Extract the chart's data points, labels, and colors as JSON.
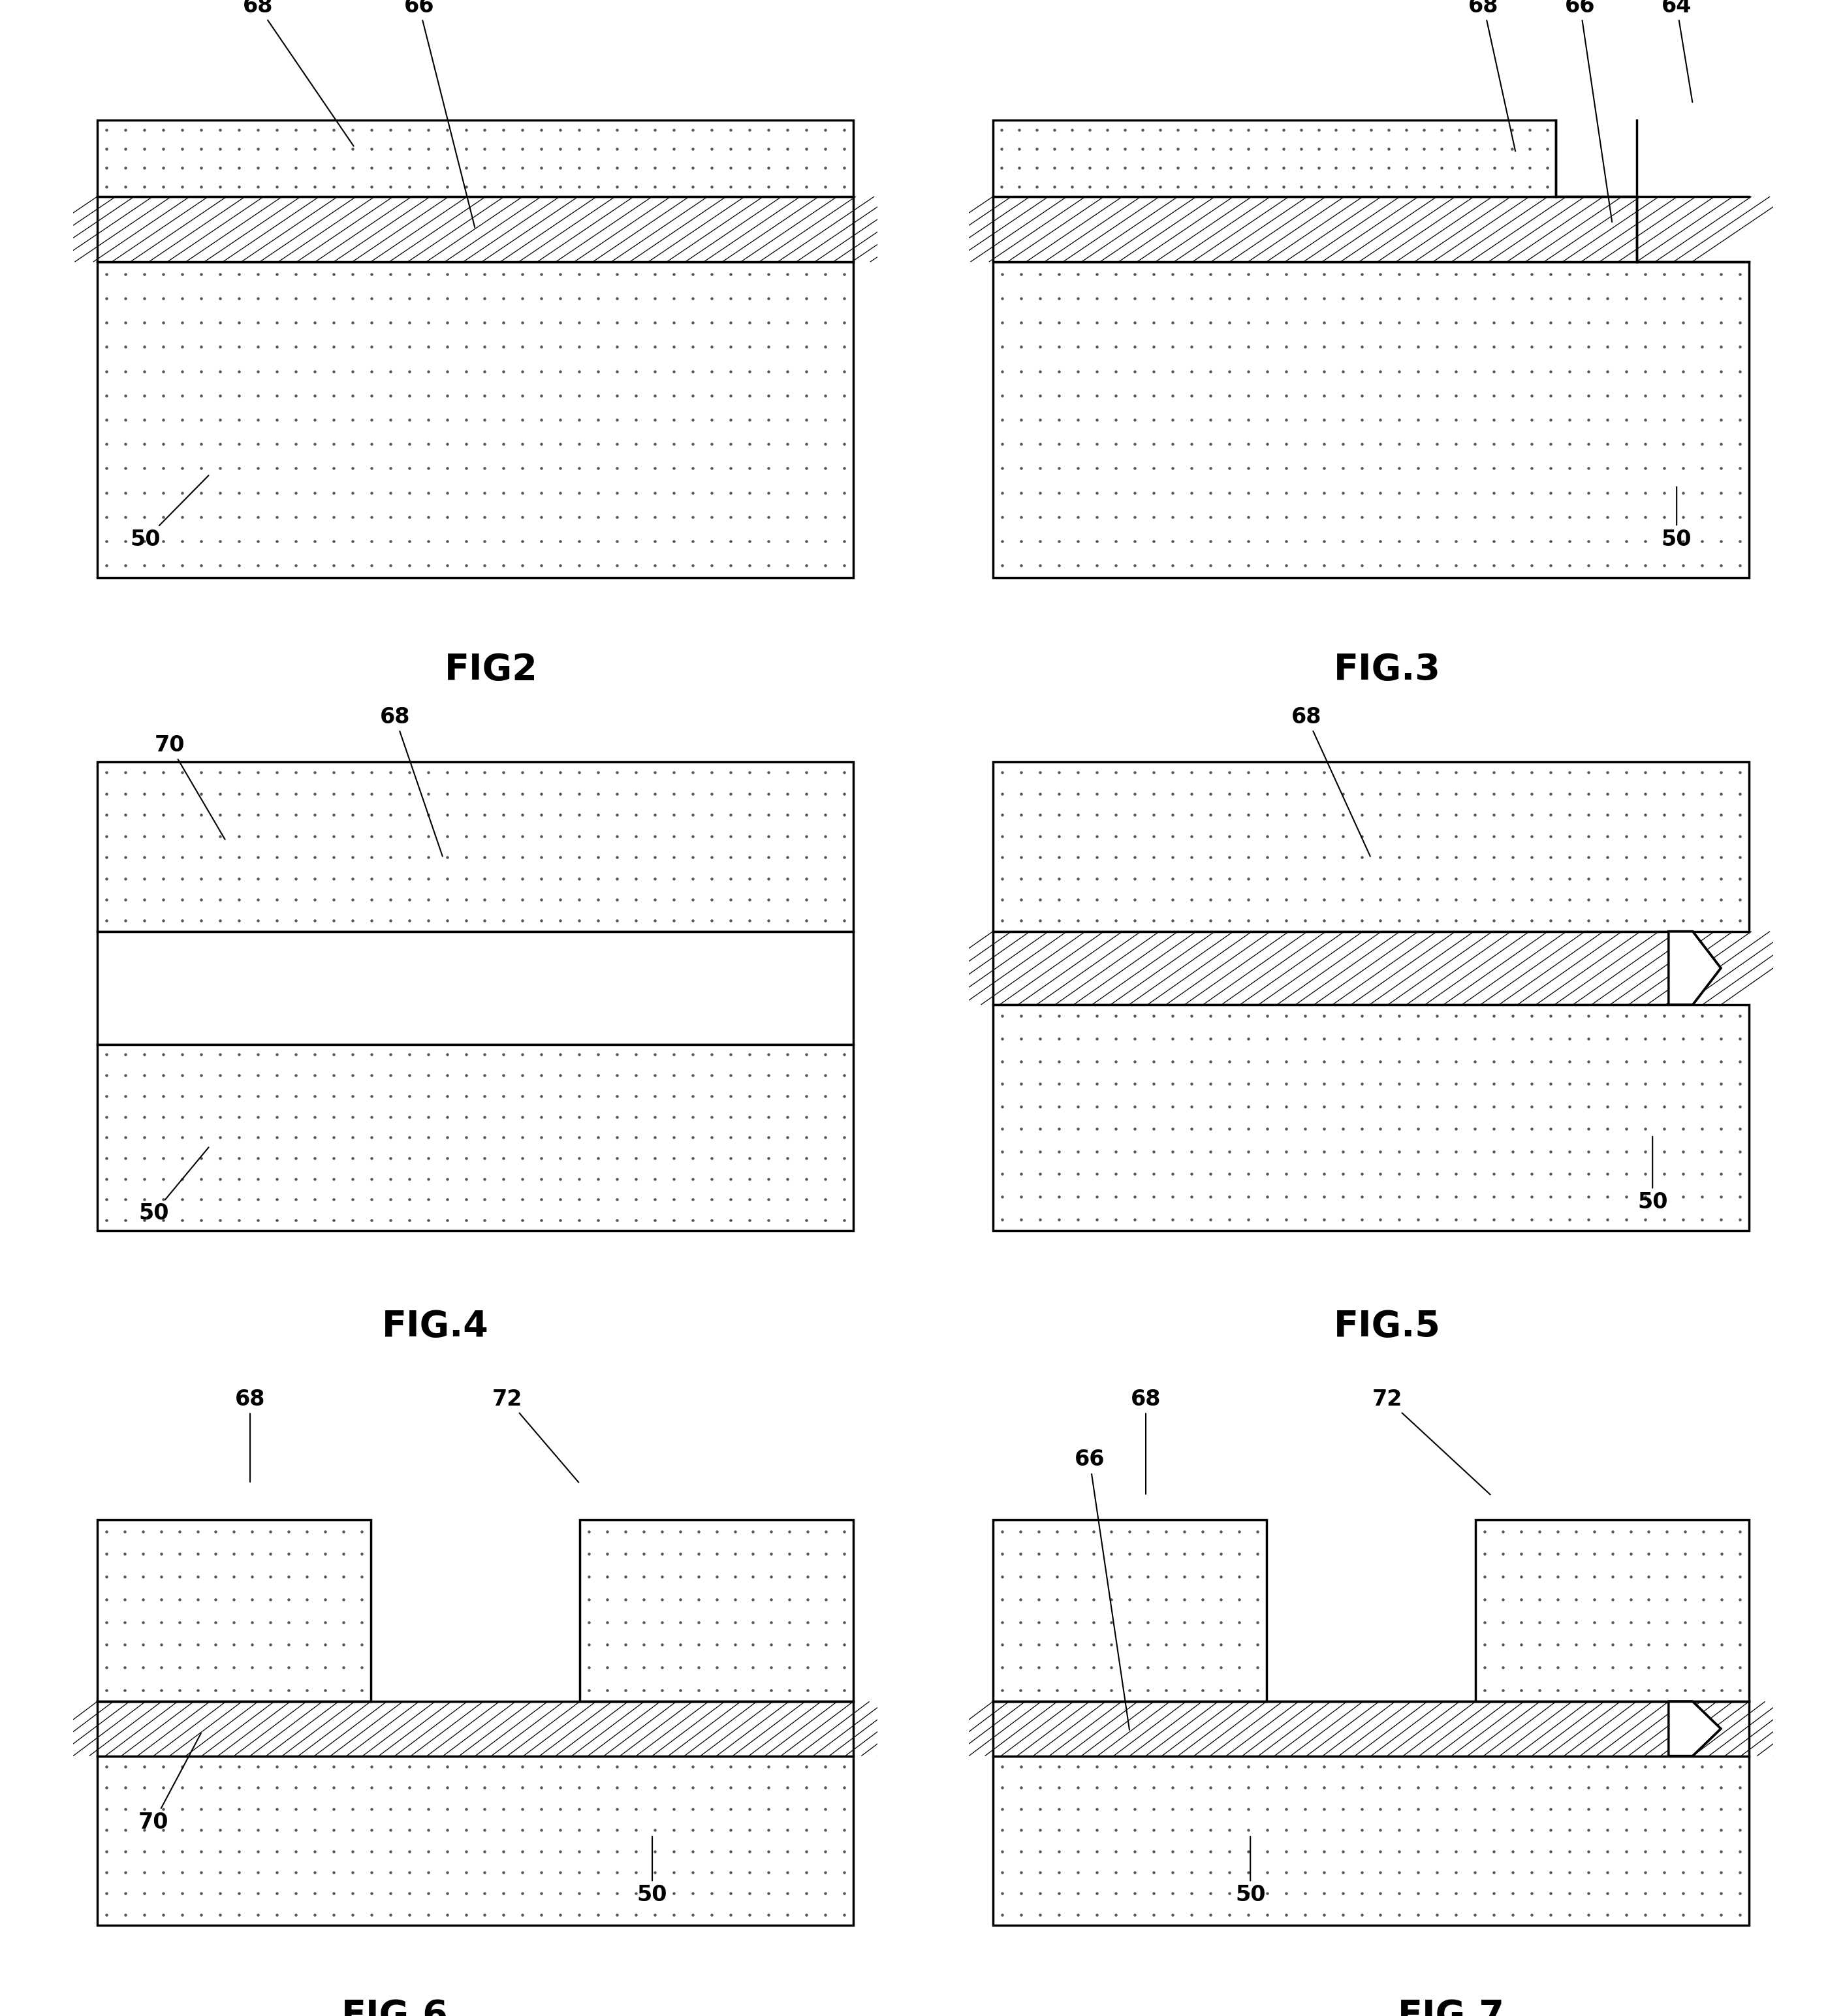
{
  "bg_color": "#ffffff",
  "lw": 2.5,
  "dot_color": "#555555",
  "dot_ms": 2.2,
  "fig_label_size": 40,
  "annot_size": 24,
  "panels": {
    "FIG2": [
      0.04,
      0.7,
      0.44,
      0.27
    ],
    "FIG3": [
      0.53,
      0.7,
      0.44,
      0.27
    ],
    "FIG4": [
      0.04,
      0.37,
      0.44,
      0.28
    ],
    "FIG5": [
      0.53,
      0.37,
      0.44,
      0.28
    ],
    "FIG6": [
      0.04,
      0.03,
      0.44,
      0.3
    ],
    "FIG7": [
      0.53,
      0.03,
      0.44,
      0.3
    ]
  }
}
